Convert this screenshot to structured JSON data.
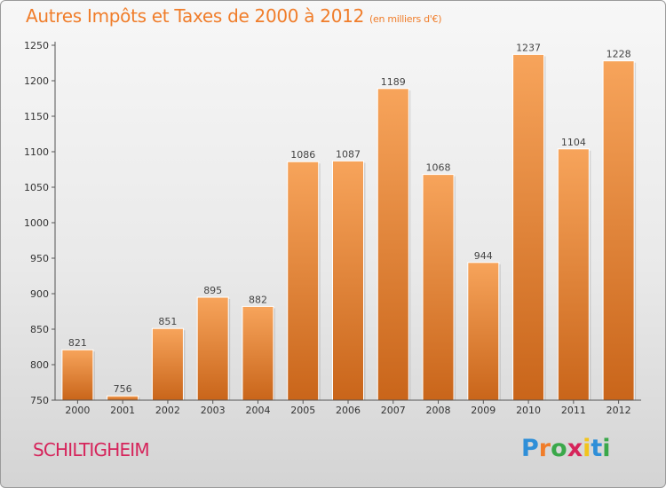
{
  "title": "Autres Impôts et Taxes de 2000 à 2012",
  "unit_label": "(en milliers d'€)",
  "city": "SCHILTIGHEIM",
  "logo_text": "Proxiti",
  "colors": {
    "title": "#f07d2a",
    "bar_top": "#f7a45b",
    "bar_bottom": "#c9651a",
    "city": "#d6245b"
  },
  "chart_data": {
    "type": "bar",
    "title": "Autres Impôts et Taxes de 2000 à 2012",
    "subtitle": "(en milliers d'€)",
    "categories": [
      "2000",
      "2001",
      "2002",
      "2003",
      "2004",
      "2005",
      "2006",
      "2007",
      "2008",
      "2009",
      "2010",
      "2011",
      "2012"
    ],
    "values": [
      821,
      756,
      851,
      895,
      882,
      1086,
      1087,
      1189,
      1068,
      944,
      1237,
      1104,
      1228
    ],
    "ylim": [
      750,
      1250
    ],
    "yticks": [
      750,
      800,
      850,
      900,
      950,
      1000,
      1050,
      1100,
      1150,
      1200,
      1250
    ],
    "grid": false,
    "legend": "none"
  }
}
